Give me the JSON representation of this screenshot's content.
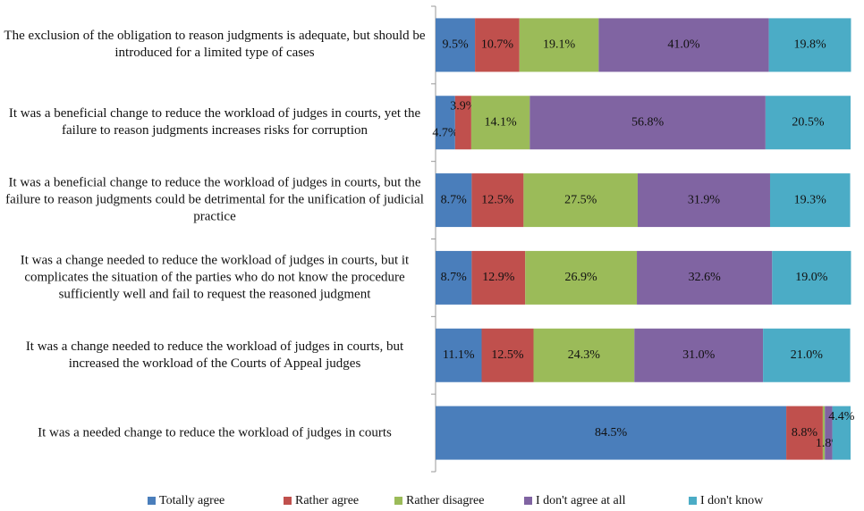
{
  "chart_data": {
    "type": "stacked_barh",
    "categories": [
      "The exclusion of the obligation to reason judgments is adequate, but should be introduced for a limited type of cases",
      "It was a beneficial change to reduce the workload of judges in courts, yet the failure to reason judgments increases risks for corruption",
      "It was a beneficial change to reduce the workload of judges in courts, but the failure to reason judgments could be detrimental for the unification of judicial practice",
      "It was a change needed to reduce the workload of judges in courts, but it complicates the situation of the parties who do not know the procedure sufficiently well and fail to request the reasoned judgment",
      "It was a change needed to reduce the workload of judges in courts, but increased the workload of the Courts of Appeal judges",
      "It was a needed change to reduce the workload of judges in courts"
    ],
    "series": [
      {
        "name": "Totally agree",
        "color": "#4a7ebb",
        "values": [
          9.5,
          4.7,
          8.7,
          8.7,
          11.1,
          84.5
        ],
        "value_labels": [
          "9.5%",
          "4.7%",
          "8.7%",
          "8.7%",
          "11.1%",
          "84.5%"
        ]
      },
      {
        "name": "Rather agree",
        "color": "#c0504d",
        "values": [
          10.7,
          3.9,
          12.5,
          12.9,
          12.5,
          8.8
        ],
        "value_labels": [
          "10.7%",
          "3.9%",
          "12.5%",
          "12.9%",
          "12.5%",
          "8.8%"
        ]
      },
      {
        "name": "Rather disagree",
        "color": "#9bbb59",
        "values": [
          19.1,
          14.1,
          27.5,
          26.9,
          24.3,
          0.5
        ],
        "value_labels": [
          "19.1%",
          "14.1%",
          "27.5%",
          "26.9%",
          "24.3%",
          null
        ]
      },
      {
        "name": "I don't agree at all",
        "color": "#8064a2",
        "values": [
          41.0,
          56.8,
          31.9,
          32.6,
          31.0,
          1.8
        ],
        "value_labels": [
          "41.0%",
          "56.8%",
          "31.9%",
          "32.6%",
          "31.0%",
          "1.8%"
        ]
      },
      {
        "name": "I don't know",
        "color": "#4bacc6",
        "values": [
          19.8,
          20.5,
          19.3,
          19.0,
          21.0,
          4.4
        ],
        "value_labels": [
          "19.8%",
          "20.5%",
          "19.3%",
          "19.0%",
          "21.0%",
          "4.4%"
        ]
      }
    ],
    "xlim": [
      0,
      100
    ],
    "legend": "bottom"
  }
}
